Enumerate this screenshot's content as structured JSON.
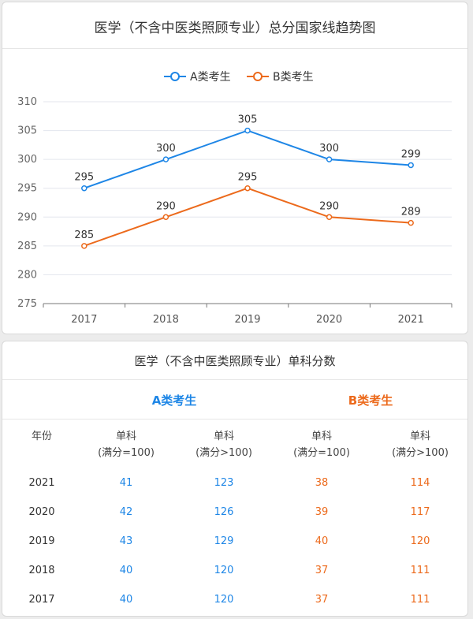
{
  "chart_data": {
    "type": "line",
    "title": "医学（不含中医类照顾专业）总分国家线趋势图",
    "categories": [
      "2017",
      "2018",
      "2019",
      "2020",
      "2021"
    ],
    "series": [
      {
        "name": "A类考生",
        "values": [
          295,
          300,
          305,
          300,
          299
        ],
        "color": "#1e86e6"
      },
      {
        "name": "B类考生",
        "values": [
          285,
          290,
          295,
          290,
          289
        ],
        "color": "#ec6a1c"
      }
    ],
    "ylim": [
      275,
      310
    ],
    "yticks": [
      275,
      280,
      285,
      290,
      295,
      300,
      305,
      310
    ],
    "grid": true,
    "legend_position": "top-center",
    "data_labels": true
  },
  "table": {
    "title": "医学（不含中医类照顾专业）单科分数",
    "group_a_label": "A类考生",
    "group_b_label": "B类考生",
    "headers": [
      {
        "line1": "年份",
        "line2": ""
      },
      {
        "line1": "单科",
        "line2": "(满分=100)"
      },
      {
        "line1": "单科",
        "line2": "(满分>100)"
      },
      {
        "line1": "单科",
        "line2": "(满分=100)"
      },
      {
        "line1": "单科",
        "line2": "(满分>100)"
      }
    ],
    "rows": [
      [
        "2021",
        "41",
        "123",
        "38",
        "114"
      ],
      [
        "2020",
        "42",
        "126",
        "39",
        "117"
      ],
      [
        "2019",
        "43",
        "129",
        "40",
        "120"
      ],
      [
        "2018",
        "40",
        "120",
        "37",
        "111"
      ],
      [
        "2017",
        "40",
        "120",
        "37",
        "111"
      ]
    ]
  }
}
